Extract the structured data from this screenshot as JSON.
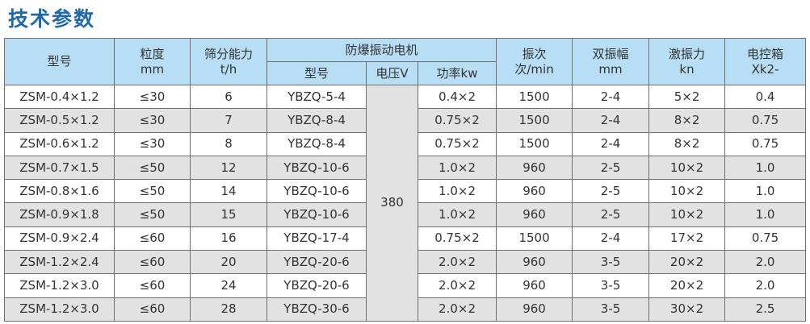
{
  "title": "技术参数",
  "headers": {
    "model": [
      "型号"
    ],
    "granularity": [
      "粒度",
      "mm"
    ],
    "capacity": [
      "筛分能力",
      "t/h"
    ],
    "motor": "防爆振动电机",
    "motor_model": "型号",
    "voltage": "电压V",
    "power": "功率kw",
    "frequency": [
      "振次",
      "次/min"
    ],
    "amplitude": [
      "双振幅",
      "mm"
    ],
    "force": [
      "激振力",
      "kn"
    ],
    "control": [
      "电控箱",
      "Xk2-"
    ]
  },
  "voltage_value": "380",
  "rows": [
    [
      "ZSM-0.4×1.2",
      "≤30",
      "6",
      "YBZQ-5-4",
      "0.4×2",
      "1500",
      "2-4",
      "5×2",
      "0.4"
    ],
    [
      "ZSM-0.5×1.2",
      "≤30",
      "7",
      "YBZQ-8-4",
      "0.75×2",
      "1500",
      "2-4",
      "8×2",
      "0.75"
    ],
    [
      "ZSM-0.6×1.2",
      "≤30",
      "8",
      "YBZQ-8-4",
      "0.75×2",
      "1500",
      "2-4",
      "8×2",
      "0.75"
    ],
    [
      "ZSM-0.7×1.5",
      "≤50",
      "12",
      "YBZQ-10-6",
      "1.0×2",
      "960",
      "2-5",
      "10×2",
      "1.0"
    ],
    [
      "ZSM-0.8×1.6",
      "≤50",
      "14",
      "YBZQ-10-6",
      "1.0×2",
      "960",
      "2-5",
      "10×2",
      "1.0"
    ],
    [
      "ZSM-0.9×1.8",
      "≤50",
      "15",
      "YBZQ-10-6",
      "1.0×2",
      "960",
      "2-5",
      "10×2",
      "1.0"
    ],
    [
      "ZSM-0.9×2.4",
      "≤60",
      "16",
      "YBZQ-17-4",
      "0.75×2",
      "1500",
      "2-4",
      "17×2",
      "0.75"
    ],
    [
      "ZSM-1.2×2.4",
      "≤60",
      "20",
      "YBZQ-20-6",
      "2.0×2",
      "960",
      "3-5",
      "20×2",
      "2.0"
    ],
    [
      "ZSM-1.2×3.0",
      "≤60",
      "24",
      "YBZQ-20-6",
      "2.0×2",
      "960",
      "3-5",
      "20×2",
      "2.0"
    ],
    [
      "ZSM-1.2×3.0",
      "≤60",
      "28",
      "YBZQ-30-6",
      "2.0×2",
      "960",
      "3-5",
      "30×2",
      "2.5"
    ]
  ],
  "colors": {
    "header_bg": "#b7def4",
    "title": "#1f6aa8",
    "alt_row": "#e2e2e2"
  }
}
